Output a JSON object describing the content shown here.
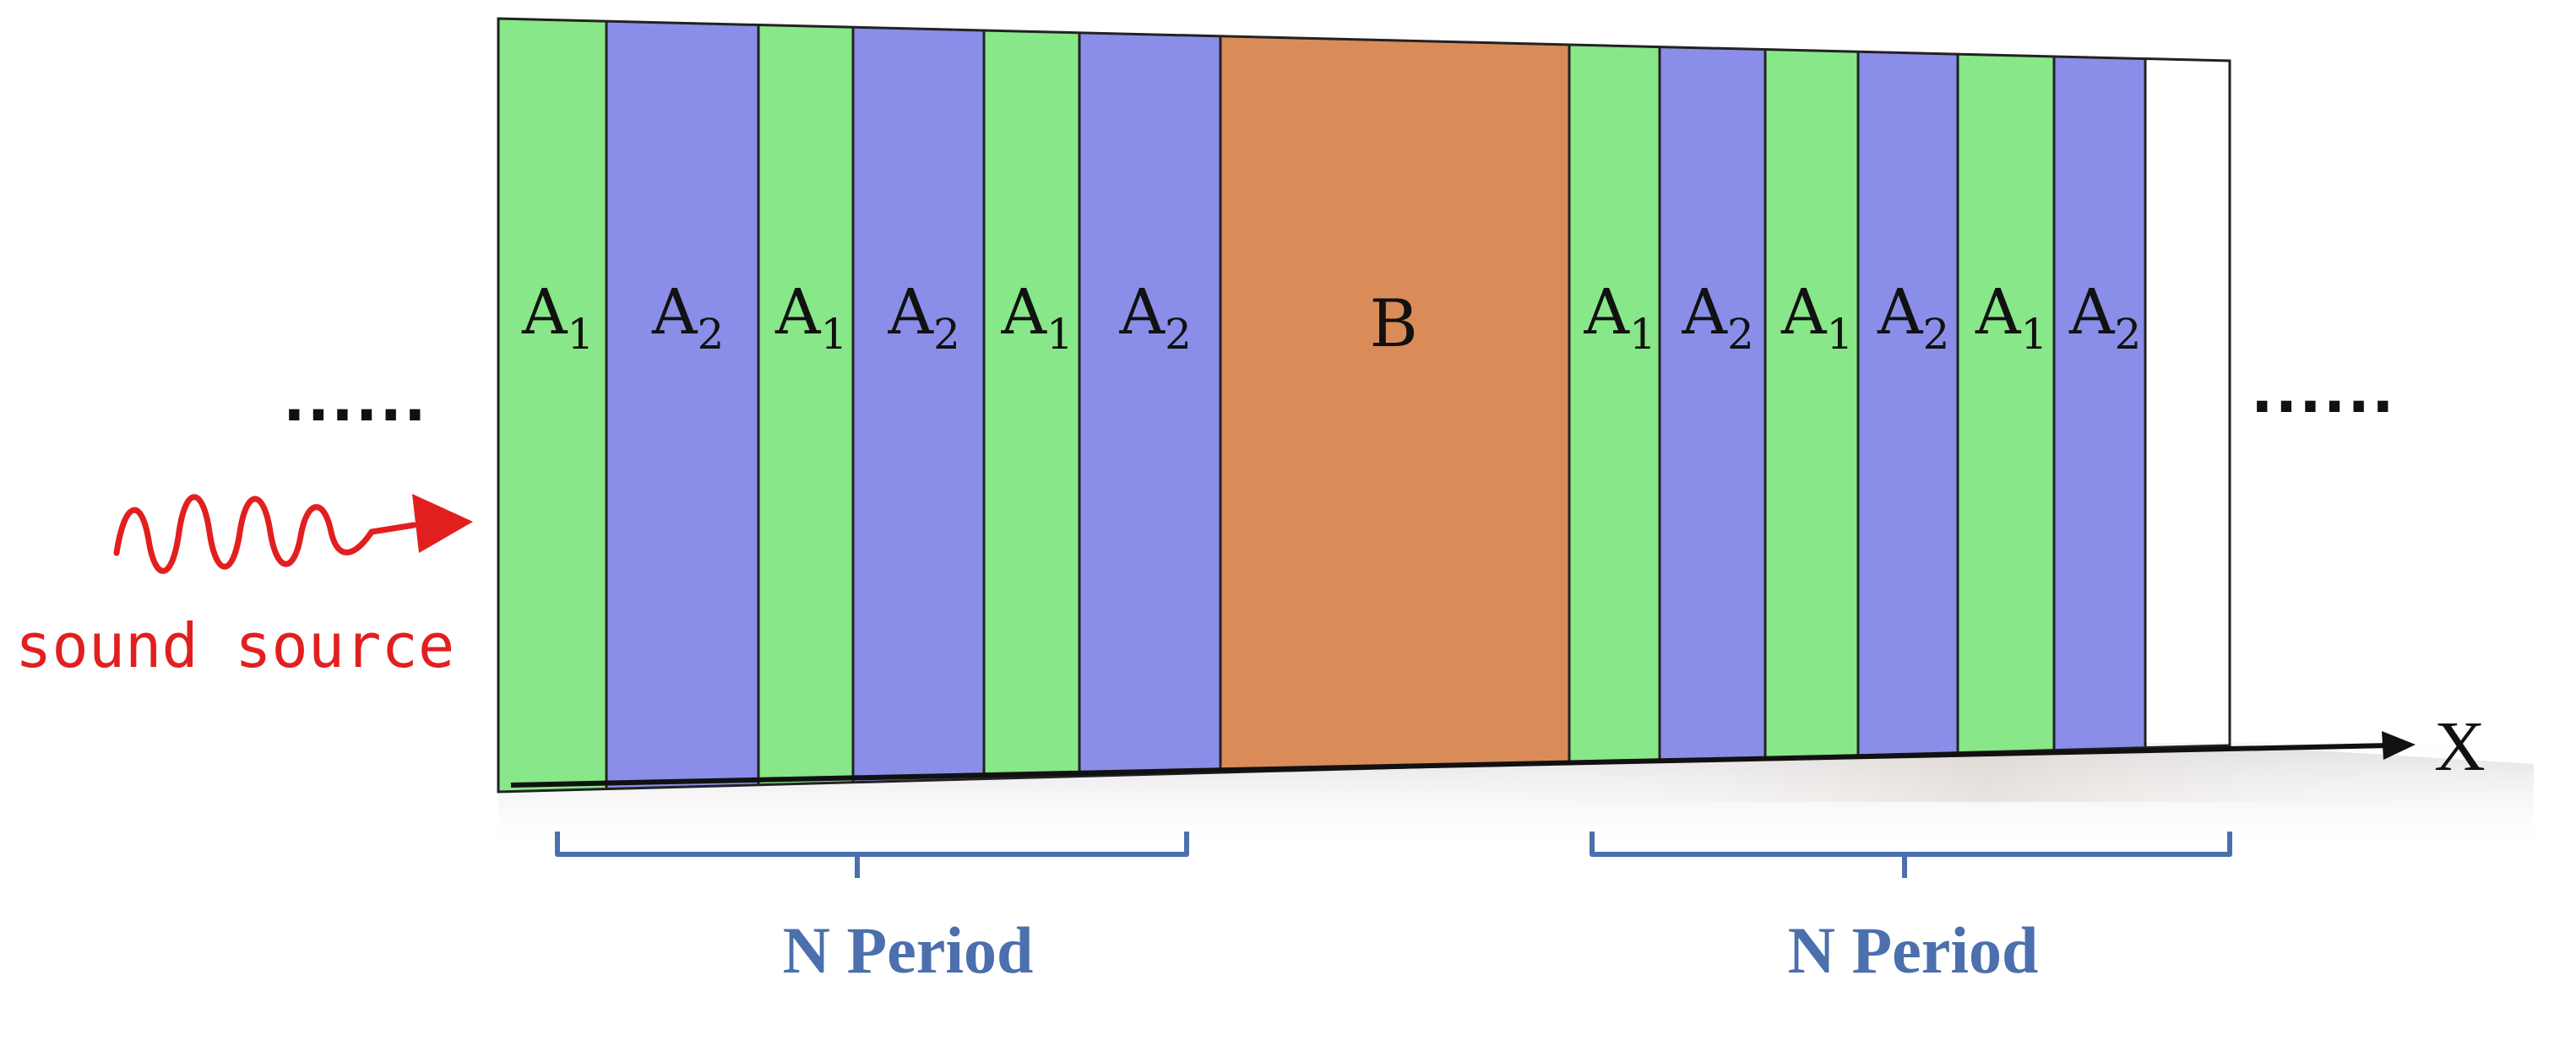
{
  "layers_left": [
    {
      "name": "A",
      "sub": "1",
      "color": "#88e788"
    },
    {
      "name": "A",
      "sub": "2",
      "color": "#8a8ee8"
    },
    {
      "name": "A",
      "sub": "1",
      "color": "#88e788"
    },
    {
      "name": "A",
      "sub": "2",
      "color": "#8a8ee8"
    },
    {
      "name": "A",
      "sub": "1",
      "color": "#88e788"
    },
    {
      "name": "A",
      "sub": "2",
      "color": "#8a8ee8"
    }
  ],
  "defect_layer": {
    "label": "B",
    "color": "#d98c58"
  },
  "layers_right": [
    {
      "name": "A",
      "sub": "1",
      "color": "#88e788"
    },
    {
      "name": "A",
      "sub": "2",
      "color": "#8a8ee8"
    },
    {
      "name": "A",
      "sub": "1",
      "color": "#88e788"
    },
    {
      "name": "A",
      "sub": "2",
      "color": "#8a8ee8"
    },
    {
      "name": "A",
      "sub": "1",
      "color": "#88e788"
    },
    {
      "name": "A",
      "sub": "2",
      "color": "#8a8ee8"
    }
  ],
  "left_brace_label": "N Period",
  "right_brace_label": "N Period",
  "source_label": "sound source",
  "axis_label": "X",
  "ellipsis_left": "......",
  "ellipsis_right": "......",
  "colors": {
    "wave": "#e21f1f",
    "brace": "#4c6fad",
    "axis": "#111111",
    "border": "#222222"
  }
}
